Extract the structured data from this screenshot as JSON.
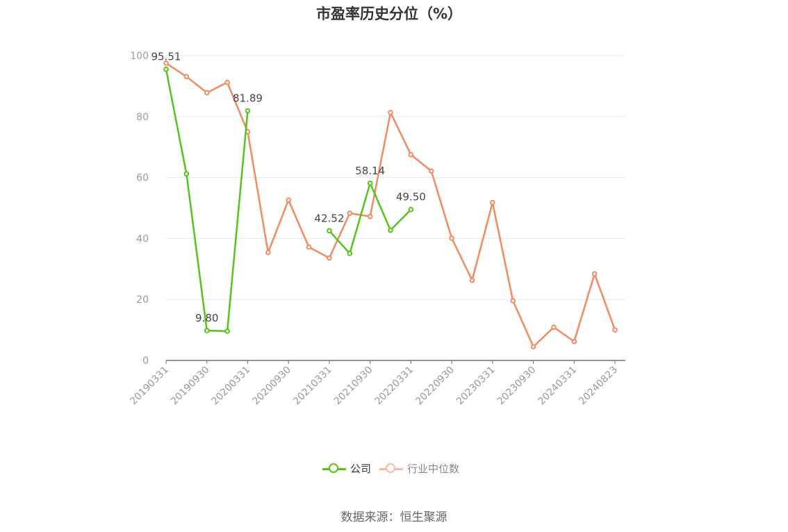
{
  "chart_data": {
    "type": "line",
    "title": "市盈率历史分位（%）",
    "x": [
      "20190331",
      "20190630",
      "20190930",
      "20191231",
      "20200331",
      "20200630",
      "20200930",
      "20201231",
      "20210331",
      "20210630",
      "20210930",
      "20211231",
      "20220331",
      "20220630",
      "20220930",
      "20221231",
      "20230331",
      "20230630",
      "20230930",
      "20231231",
      "20240331",
      "20240630",
      "20240823"
    ],
    "x_tick_labels": [
      "20190331",
      "20190930",
      "20200331",
      "20200930",
      "20210331",
      "20210930",
      "20220331",
      "20220930",
      "20230331",
      "20230930",
      "20240331",
      "20240823"
    ],
    "ylim": [
      0,
      100
    ],
    "y_ticks": [
      0,
      20,
      40,
      60,
      80,
      100
    ],
    "grid": true,
    "legend": "bottom",
    "series": [
      {
        "name": "公司",
        "color": "#52c41a",
        "values": [
          95.51,
          61.2,
          9.8,
          9.6,
          81.89,
          null,
          null,
          null,
          42.52,
          35.1,
          58.14,
          42.7,
          49.5,
          null,
          null,
          null,
          null,
          null,
          null,
          null,
          null,
          null,
          null
        ],
        "data_labels": [
          {
            "index": 0,
            "text": "95.51"
          },
          {
            "index": 2,
            "text": "9.80"
          },
          {
            "index": 4,
            "text": "81.89"
          },
          {
            "index": 8,
            "text": "42.52"
          },
          {
            "index": 10,
            "text": "58.14"
          },
          {
            "index": 12,
            "text": "49.50"
          }
        ]
      },
      {
        "name": "行业中位数",
        "color": "#f4895f",
        "values": [
          97.5,
          93.1,
          87.8,
          91.2,
          75.0,
          35.4,
          52.6,
          37.2,
          33.6,
          48.3,
          47.2,
          81.3,
          67.5,
          62.1,
          40.1,
          26.3,
          51.8,
          19.6,
          4.5,
          10.9,
          6.2,
          28.4,
          10.0
        ]
      }
    ]
  },
  "footer": {
    "source": "数据来源：恒生聚源"
  }
}
